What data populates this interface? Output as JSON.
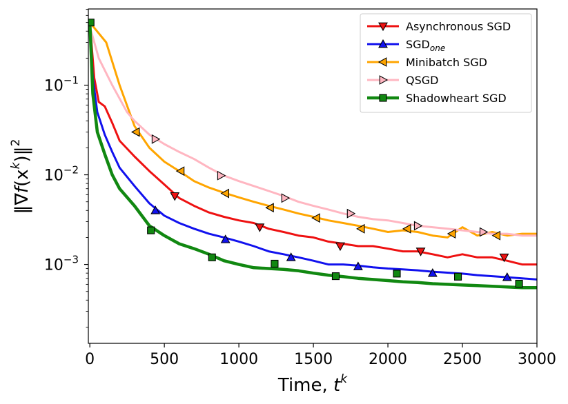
{
  "chart_data": {
    "type": "line",
    "xlabel": "Time, t^k",
    "xlabel_parts": {
      "main": "Time, ",
      "var": "t",
      "sup": "k"
    },
    "ylabel": "‖∇f(x^k)‖^2",
    "ylabel_parts": {
      "pre": "‖∇",
      "f": "f",
      "mid": "(x",
      "sup1": "k",
      "post": ")‖",
      "sup2": "2"
    },
    "xlim": [
      -10,
      3000
    ],
    "ylim_log10": [
      -3.88,
      -0.15
    ],
    "y_scale": "log",
    "x_ticks": [
      0,
      500,
      1000,
      1500,
      2000,
      2500,
      3000
    ],
    "x_tick_labels": [
      "0",
      "500",
      "1000",
      "1500",
      "2000",
      "2500",
      "3000"
    ],
    "y_ticks_log10": [
      -3,
      -2,
      -1
    ],
    "y_tick_labels": [
      {
        "base": "10",
        "exp": "−3"
      },
      {
        "base": "10",
        "exp": "−2"
      },
      {
        "base": "10",
        "exp": "−1"
      }
    ],
    "legend_position": "top-right",
    "series": [
      {
        "name": "Asynchronous SGD",
        "color": "#ee1111",
        "marker": "triangle-down",
        "points": [
          [
            0,
            0.5
          ],
          [
            30,
            0.12
          ],
          [
            60,
            0.065
          ],
          [
            100,
            0.058
          ],
          [
            150,
            0.038
          ],
          [
            200,
            0.024
          ],
          [
            300,
            0.016
          ],
          [
            400,
            0.011
          ],
          [
            500,
            0.0078
          ],
          [
            600,
            0.0055
          ],
          [
            700,
            0.0045
          ],
          [
            800,
            0.0038
          ],
          [
            900,
            0.0034
          ],
          [
            1000,
            0.0031
          ],
          [
            1100,
            0.0029
          ],
          [
            1200,
            0.0025
          ],
          [
            1300,
            0.0023
          ],
          [
            1400,
            0.0021
          ],
          [
            1500,
            0.002
          ],
          [
            1600,
            0.0018
          ],
          [
            1700,
            0.0017
          ],
          [
            1800,
            0.0016
          ],
          [
            1900,
            0.0016
          ],
          [
            2000,
            0.0015
          ],
          [
            2100,
            0.0014
          ],
          [
            2200,
            0.0014
          ],
          [
            2300,
            0.0013
          ],
          [
            2400,
            0.0012
          ],
          [
            2500,
            0.0013
          ],
          [
            2600,
            0.0012
          ],
          [
            2700,
            0.0012
          ],
          [
            2800,
            0.0011
          ],
          [
            2900,
            0.001
          ],
          [
            3000,
            0.001
          ]
        ],
        "markers": [
          [
            570,
            0.0058
          ],
          [
            1140,
            0.0026
          ],
          [
            1680,
            0.0016
          ],
          [
            2220,
            0.0014
          ],
          [
            2780,
            0.0012
          ]
        ]
      },
      {
        "name": "SGD",
        "name_sub": "one",
        "color": "#1111ee",
        "marker": "triangle-up",
        "points": [
          [
            0,
            0.5
          ],
          [
            20,
            0.12
          ],
          [
            50,
            0.05
          ],
          [
            100,
            0.028
          ],
          [
            150,
            0.018
          ],
          [
            200,
            0.012
          ],
          [
            300,
            0.0075
          ],
          [
            400,
            0.0048
          ],
          [
            500,
            0.0035
          ],
          [
            600,
            0.0029
          ],
          [
            700,
            0.0025
          ],
          [
            800,
            0.0022
          ],
          [
            900,
            0.002
          ],
          [
            1000,
            0.0018
          ],
          [
            1100,
            0.0016
          ],
          [
            1200,
            0.0014
          ],
          [
            1300,
            0.0013
          ],
          [
            1400,
            0.0012
          ],
          [
            1500,
            0.0011
          ],
          [
            1600,
            0.001
          ],
          [
            1700,
            0.001
          ],
          [
            1800,
            0.00097
          ],
          [
            1900,
            0.00093
          ],
          [
            2000,
            0.0009
          ],
          [
            2100,
            0.00088
          ],
          [
            2200,
            0.00086
          ],
          [
            2300,
            0.00083
          ],
          [
            2400,
            0.00081
          ],
          [
            2500,
            0.00079
          ],
          [
            2600,
            0.00076
          ],
          [
            2700,
            0.00074
          ],
          [
            2800,
            0.00072
          ],
          [
            2900,
            0.0007
          ],
          [
            3000,
            0.00068
          ]
        ],
        "markers": [
          [
            440,
            0.004
          ],
          [
            910,
            0.0019
          ],
          [
            1350,
            0.0012
          ],
          [
            1800,
            0.00095
          ],
          [
            2300,
            0.0008
          ],
          [
            2800,
            0.00072
          ]
        ]
      },
      {
        "name": "Minibatch SGD",
        "color": "#ffa500",
        "marker": "triangle-left",
        "points": [
          [
            0,
            0.5
          ],
          [
            110,
            0.3
          ],
          [
            200,
            0.1
          ],
          [
            300,
            0.035
          ],
          [
            400,
            0.02
          ],
          [
            500,
            0.014
          ],
          [
            600,
            0.011
          ],
          [
            700,
            0.0085
          ],
          [
            800,
            0.0072
          ],
          [
            900,
            0.0063
          ],
          [
            1000,
            0.0056
          ],
          [
            1100,
            0.005
          ],
          [
            1200,
            0.0045
          ],
          [
            1300,
            0.0041
          ],
          [
            1400,
            0.0037
          ],
          [
            1500,
            0.0034
          ],
          [
            1600,
            0.0031
          ],
          [
            1700,
            0.0029
          ],
          [
            1800,
            0.0027
          ],
          [
            1900,
            0.0025
          ],
          [
            2000,
            0.0023
          ],
          [
            2100,
            0.0024
          ],
          [
            2200,
            0.0023
          ],
          [
            2300,
            0.0021
          ],
          [
            2400,
            0.002
          ],
          [
            2500,
            0.0026
          ],
          [
            2600,
            0.0021
          ],
          [
            2700,
            0.0023
          ],
          [
            2800,
            0.0021
          ],
          [
            2900,
            0.0022
          ],
          [
            3000,
            0.0022
          ]
        ],
        "markers": [
          [
            310,
            0.03
          ],
          [
            610,
            0.011
          ],
          [
            910,
            0.0062
          ],
          [
            1210,
            0.0043
          ],
          [
            1520,
            0.0033
          ],
          [
            1820,
            0.0025
          ],
          [
            2130,
            0.0025
          ],
          [
            2430,
            0.0022
          ],
          [
            2730,
            0.0021
          ]
        ]
      },
      {
        "name": "QSGD",
        "color": "#ffb6c1",
        "marker": "triangle-right",
        "points": [
          [
            0,
            0.45
          ],
          [
            60,
            0.2
          ],
          [
            150,
            0.1
          ],
          [
            250,
            0.05
          ],
          [
            300,
            0.04
          ],
          [
            400,
            0.028
          ],
          [
            500,
            0.022
          ],
          [
            600,
            0.018
          ],
          [
            700,
            0.015
          ],
          [
            800,
            0.012
          ],
          [
            900,
            0.0098
          ],
          [
            1000,
            0.0085
          ],
          [
            1100,
            0.0075
          ],
          [
            1200,
            0.0066
          ],
          [
            1300,
            0.0058
          ],
          [
            1400,
            0.005
          ],
          [
            1500,
            0.0045
          ],
          [
            1600,
            0.0041
          ],
          [
            1700,
            0.0037
          ],
          [
            1800,
            0.0034
          ],
          [
            1900,
            0.0032
          ],
          [
            2000,
            0.0031
          ],
          [
            2100,
            0.0029
          ],
          [
            2200,
            0.0027
          ],
          [
            2300,
            0.0026
          ],
          [
            2400,
            0.0025
          ],
          [
            2500,
            0.0024
          ],
          [
            2600,
            0.0023
          ],
          [
            2700,
            0.0022
          ],
          [
            2800,
            0.0022
          ],
          [
            2900,
            0.0021
          ],
          [
            3000,
            0.0021
          ]
        ],
        "markers": [
          [
            440,
            0.025
          ],
          [
            880,
            0.0098
          ],
          [
            1310,
            0.0055
          ],
          [
            1750,
            0.0037
          ],
          [
            2200,
            0.0027
          ],
          [
            2640,
            0.0023
          ]
        ]
      },
      {
        "name": "Shadowheart SGD",
        "color": "#118811",
        "marker": "square",
        "points": [
          [
            0,
            0.5
          ],
          [
            20,
            0.08
          ],
          [
            50,
            0.03
          ],
          [
            100,
            0.017
          ],
          [
            150,
            0.01
          ],
          [
            200,
            0.007
          ],
          [
            300,
            0.0045
          ],
          [
            400,
            0.0027
          ],
          [
            500,
            0.0021
          ],
          [
            600,
            0.0017
          ],
          [
            700,
            0.0015
          ],
          [
            800,
            0.0013
          ],
          [
            900,
            0.0011
          ],
          [
            1000,
            0.001
          ],
          [
            1100,
            0.00092
          ],
          [
            1200,
            0.0009
          ],
          [
            1300,
            0.00088
          ],
          [
            1400,
            0.00085
          ],
          [
            1500,
            0.0008
          ],
          [
            1600,
            0.00076
          ],
          [
            1700,
            0.00073
          ],
          [
            1800,
            0.0007
          ],
          [
            1900,
            0.00068
          ],
          [
            2000,
            0.00066
          ],
          [
            2100,
            0.00064
          ],
          [
            2200,
            0.00063
          ],
          [
            2300,
            0.00061
          ],
          [
            2400,
            0.0006
          ],
          [
            2500,
            0.00059
          ],
          [
            2600,
            0.00058
          ],
          [
            2700,
            0.00057
          ],
          [
            2800,
            0.00056
          ],
          [
            2900,
            0.00055
          ],
          [
            3000,
            0.00055
          ]
        ],
        "markers": [
          [
            5,
            0.5
          ],
          [
            410,
            0.0024
          ],
          [
            820,
            0.0012
          ],
          [
            1240,
            0.00102
          ],
          [
            1650,
            0.00074
          ],
          [
            2060,
            0.00079
          ],
          [
            2470,
            0.00073
          ],
          [
            2880,
            0.00061
          ]
        ]
      }
    ]
  }
}
